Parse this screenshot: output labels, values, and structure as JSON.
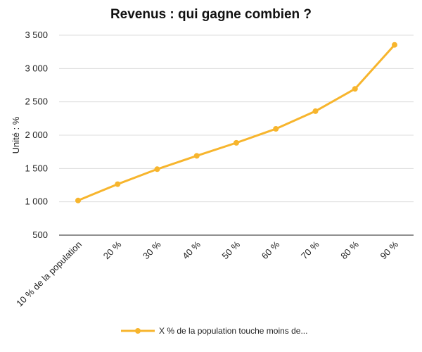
{
  "chart_data": {
    "type": "line",
    "title": "Revenus : qui gagne combien ?",
    "xlabel": "",
    "ylabel": "Unité : %",
    "categories": [
      "10 % de la population",
      "20 %",
      "30 %",
      "40 %",
      "50 %",
      "60 %",
      "70 %",
      "80 %",
      "90 %"
    ],
    "series": [
      {
        "name": "X % de la population touche moins de...",
        "values": [
          1020,
          1265,
          1490,
          1690,
          1885,
          2095,
          2360,
          2695,
          3355
        ],
        "color": "#f7b52d"
      }
    ],
    "ylim": [
      500,
      3500
    ],
    "yticks": [
      500,
      1000,
      1500,
      2000,
      2500,
      3000,
      3500
    ],
    "ytick_labels": [
      "500",
      "1 000",
      "1 500",
      "2 000",
      "2 500",
      "3 000",
      "3 500"
    ],
    "grid": true,
    "legend_position": "bottom-center"
  }
}
